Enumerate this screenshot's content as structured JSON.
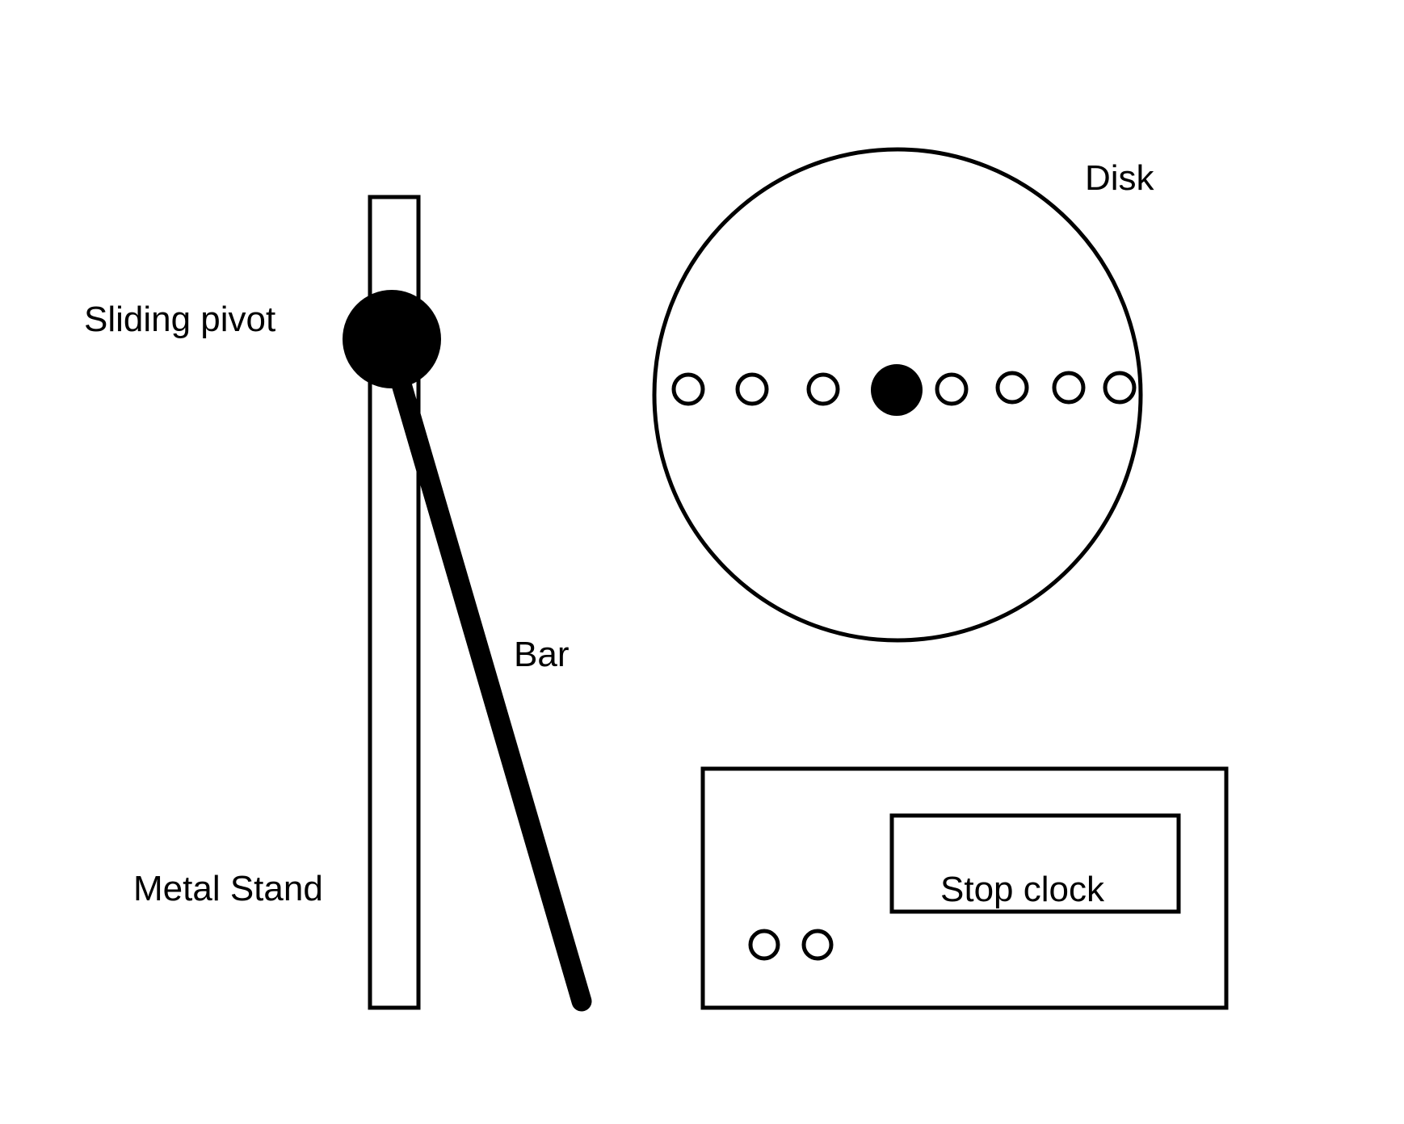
{
  "labels": {
    "sliding_pivot": "Sliding pivot",
    "disk": "Disk",
    "bar": "Bar",
    "metal_stand": "Metal Stand",
    "stop_clock": "Stop clock"
  },
  "colors": {
    "stroke": "#000000",
    "background": "#ffffff"
  }
}
